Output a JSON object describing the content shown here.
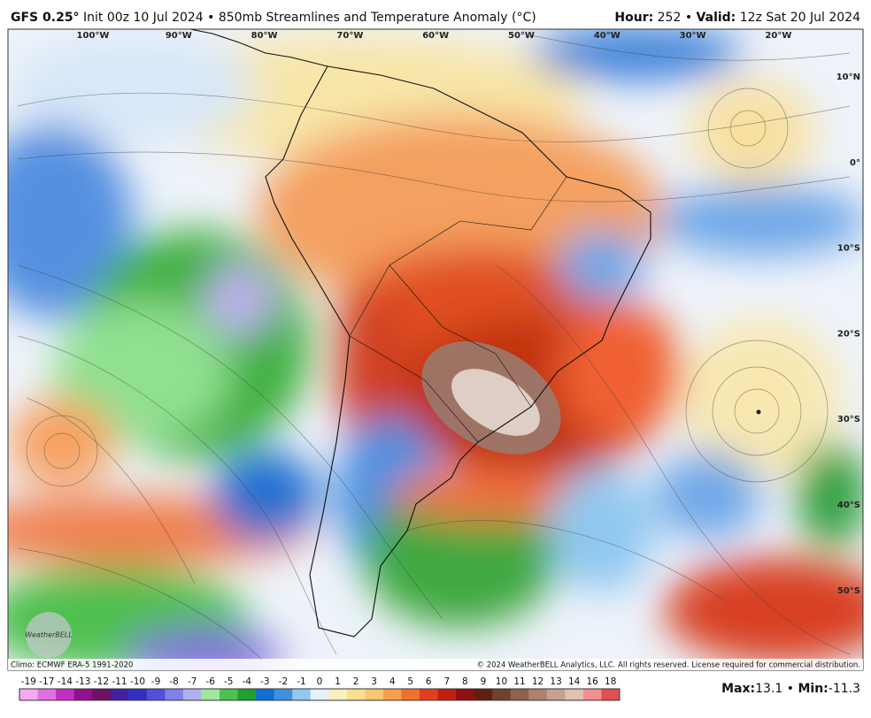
{
  "header": {
    "model": "GFS 0.25°",
    "description": " Init 00z 10 Jul 2024 • 850mb Streamlines and Temperature Anomaly (°C)",
    "hour_label": "Hour:",
    "hour_value": " 252 • ",
    "valid_label": "Valid:",
    "valid_value": " 12z Sat 20 Jul 2024"
  },
  "map": {
    "longitude_labels": [
      "100°W",
      "90°W",
      "80°W",
      "70°W",
      "60°W",
      "50°W",
      "40°W",
      "30°W",
      "20°W"
    ],
    "latitude_labels": [
      "10°N",
      "0°",
      "10°S",
      "20°S",
      "30°S",
      "40°S",
      "50°S"
    ],
    "logo": "WeatherBELL"
  },
  "footer": {
    "climo": "Climo: ECMWF ERA-5 1991-2020",
    "copyright": "© 2024 WeatherBELL Analytics, LLC. All rights reserved. License required for commercial distribution."
  },
  "colorbar": {
    "labels": [
      -19,
      -17,
      -14,
      -13,
      -12,
      -11,
      -10,
      -9,
      -8,
      -7,
      -6,
      -5,
      -4,
      -3,
      -2,
      -1,
      0,
      1,
      2,
      3,
      4,
      5,
      6,
      7,
      8,
      9,
      10,
      11,
      12,
      13,
      14,
      16,
      18
    ],
    "colors": [
      "#f7a8f0",
      "#e070e0",
      "#c030c0",
      "#901090",
      "#701060",
      "#4020a0",
      "#3030c0",
      "#5050d8",
      "#8080e8",
      "#b0b0f0",
      "#a0e8a0",
      "#50c050",
      "#20a030",
      "#1070d0",
      "#4090e0",
      "#90c8f0",
      "#e8f0f8",
      "#f8f0c0",
      "#f8e090",
      "#f8c870",
      "#f8a050",
      "#f07030",
      "#e04020",
      "#c02010",
      "#901010",
      "#602010",
      "#704030",
      "#906050",
      "#b08070",
      "#c8a090",
      "#e0c0b0",
      "#f09090",
      "#e05050"
    ]
  },
  "stats": {
    "max_label": "Max:",
    "max": 13.1,
    "separator": " • ",
    "min_label": "Min:",
    "min": -11.3
  }
}
